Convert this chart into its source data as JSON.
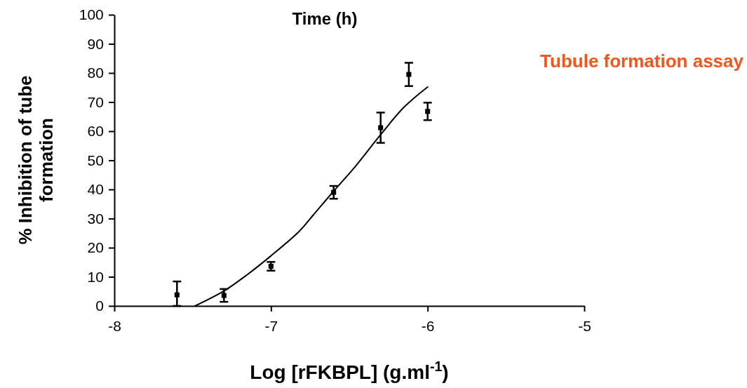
{
  "chart_data": {
    "type": "scatter",
    "title": "Time (h)",
    "xlabel": "Log [rFKBPL] (g.ml$^{-1}$)",
    "ylabel": "% Inhibition of tube formation",
    "annotations": [
      "Tubule formation assay"
    ],
    "xlim": [
      -8,
      -5
    ],
    "xticks": [
      -8,
      -7,
      -6,
      -5
    ],
    "ylim": [
      0,
      100
    ],
    "yticks": [
      0,
      10,
      20,
      30,
      40,
      50,
      60,
      70,
      80,
      90,
      100
    ],
    "grid": false,
    "series": [
      {
        "marker": "square",
        "color": "#000000",
        "x": [
          -7.6,
          -7.3,
          -7.0,
          -6.6,
          -6.3,
          -6.12,
          -6.0
        ],
        "values": [
          3.8,
          3.6,
          13.6,
          39.0,
          61.2,
          79.5,
          66.8
        ],
        "errors": [
          [
            0,
            8.4
          ],
          2.2,
          1.5,
          2.2,
          5.2,
          4,
          3
        ]
      },
      {
        "type": "line",
        "marker": "none",
        "line_style": "solid",
        "color": "#000000",
        "x": [
          -7.484,
          -7.298,
          -7.15,
          -7.0,
          -6.82,
          -6.73,
          -6.61,
          -6.46,
          -6.3,
          -6.15,
          -6.0
        ],
        "values": [
          0,
          5.2,
          10.8,
          17.2,
          25.6,
          31.2,
          38.8,
          48,
          58.8,
          68.3,
          75.2
        ]
      }
    ]
  }
}
